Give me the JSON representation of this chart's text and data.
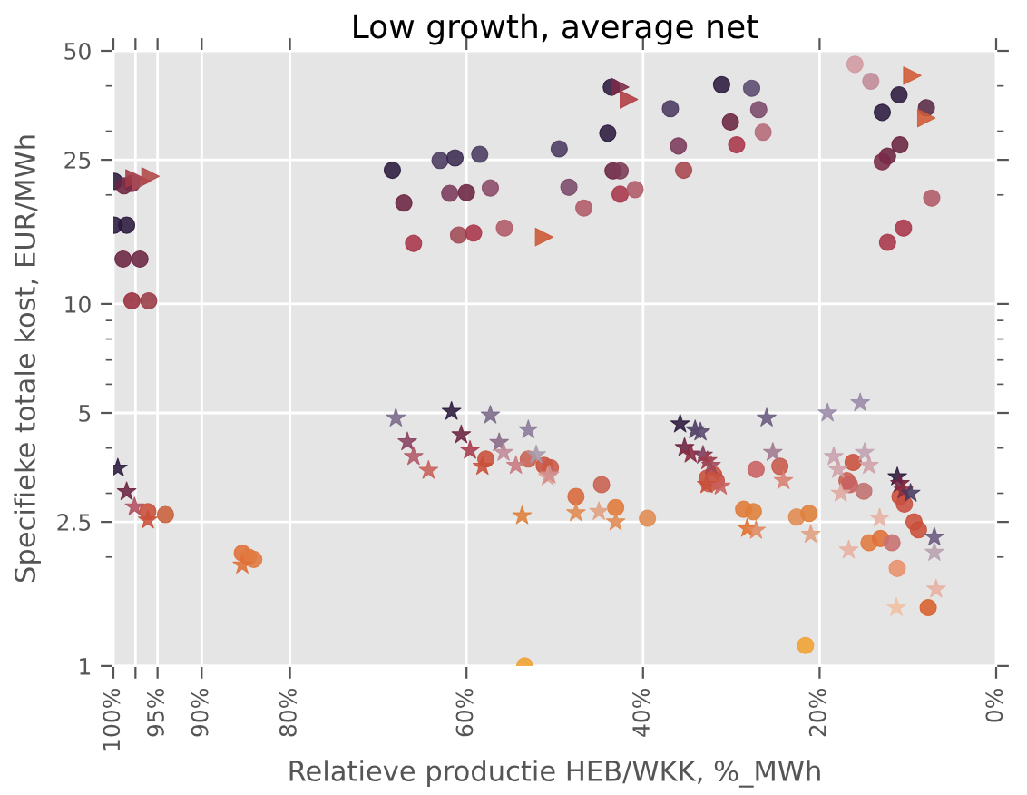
{
  "chart_data": {
    "type": "scatter",
    "title": "Low growth, average net",
    "xlabel": "Relatieve productie HEB/WKK, %_MWh",
    "ylabel": "Specifieke totale kost, EUR/MWh",
    "log": "y",
    "grid": true,
    "xlim": [
      100,
      0
    ],
    "xticks": [
      {
        "value": 100,
        "label": "100%"
      },
      {
        "value": 97.5,
        "label": null
      },
      {
        "value": 95,
        "label": "95%"
      },
      {
        "value": 90,
        "label": "90%"
      },
      {
        "value": 80,
        "label": "80%"
      },
      {
        "value": 60,
        "label": "60%"
      },
      {
        "value": 40,
        "label": "40%"
      },
      {
        "value": 20,
        "label": "20%"
      },
      {
        "value": 0,
        "label": "0%"
      }
    ],
    "ylim": [
      1,
      50
    ],
    "yticks": [
      1,
      2.5,
      5,
      10,
      25,
      50
    ],
    "series": [
      {
        "marker": "circle",
        "x": [
          99.9,
          98.8,
          97.9,
          99.9,
          98.5,
          98.9,
          97.0,
          97.9,
          96.0,
          68.4,
          67.1,
          66.0,
          63.0,
          61.3,
          58.5,
          61.9,
          60.0,
          57.3,
          60.9,
          59.2,
          55.7,
          49.5,
          48.4,
          46.7,
          44.0,
          43.6,
          43.4,
          42.6,
          42.6,
          40.9,
          36.9,
          36.0,
          35.4,
          31.1,
          27.7,
          30.1,
          26.9,
          29.4,
          26.4,
          16.0,
          14.2,
          11.0,
          12.9,
          7.9,
          10.9,
          12.3,
          12.9,
          7.3,
          10.5,
          12.3,
          96.1,
          94.1,
          85.4,
          84.7,
          84.1,
          57.8,
          53.0,
          51.2,
          50.5,
          47.6,
          44.7,
          43.1,
          39.5,
          32.7,
          32.0,
          31.7,
          32.5,
          27.2,
          24.5,
          28.6,
          27.5,
          22.6,
          21.2,
          21.6,
          16.2,
          16.9,
          16.6,
          15.0,
          14.4,
          13.1,
          11.8,
          11.2,
          10.9,
          10.4,
          9.3,
          8.8,
          7.7,
          53.4
        ],
        "values": [
          21.8,
          21.2,
          21.5,
          16.5,
          16.5,
          13.3,
          13.3,
          10.2,
          10.2,
          23.4,
          19.0,
          14.7,
          24.9,
          25.3,
          25.9,
          20.2,
          20.3,
          20.9,
          15.5,
          15.7,
          16.2,
          26.8,
          21.0,
          18.4,
          29.6,
          39.7,
          23.3,
          23.3,
          20.1,
          20.7,
          34.6,
          27.3,
          23.4,
          40.3,
          39.4,
          31.8,
          34.4,
          27.5,
          29.8,
          45.9,
          41.2,
          37.8,
          33.8,
          34.8,
          27.5,
          25.6,
          24.7,
          19.6,
          16.2,
          14.8,
          2.67,
          2.62,
          2.05,
          2.0,
          1.97,
          3.73,
          3.73,
          3.58,
          3.53,
          2.94,
          3.17,
          2.74,
          2.56,
          3.31,
          3.37,
          3.25,
          3.19,
          3.49,
          3.56,
          2.71,
          2.67,
          2.58,
          2.64,
          1.14,
          3.65,
          3.25,
          3.17,
          3.04,
          2.19,
          2.25,
          2.19,
          1.86,
          2.94,
          2.8,
          2.5,
          2.38,
          1.45,
          1.0
        ],
        "colors": [
          "#2b1a3d",
          "#6b2340",
          "#7a2a48",
          "#2b1a3d",
          "#2b1a3d",
          "#6b2340",
          "#6b2340",
          "#9a2e3e",
          "#9a3a45",
          "#2b1a3d",
          "#6b2340",
          "#a8364a",
          "#4a3a5e",
          "#3a2a50",
          "#4a3a5e",
          "#7a3a5a",
          "#6b2340",
          "#8a4a66",
          "#a04a55",
          "#a8364a",
          "#b05a68",
          "#4a3a5e",
          "#7a4a6a",
          "#b05a68",
          "#2b1a3d",
          "#2b1a3d",
          "#6b2340",
          "#7a3a55",
          "#a8364a",
          "#b05a68",
          "#4a3a5e",
          "#7a3a5a",
          "#a8464e",
          "#2b1a3d",
          "#5a4a6e",
          "#6b2340",
          "#7a4a6a",
          "#a8364a",
          "#b56a78",
          "#d09aa0",
          "#c08a98",
          "#2b1a3d",
          "#2b1a3d",
          "#5a2a45",
          "#6b2340",
          "#6b2340",
          "#7a2a48",
          "#b05a68",
          "#a8364a",
          "#a8364a",
          "#c8503a",
          "#c8603a",
          "#e07038",
          "#e07a40",
          "#e07a40",
          "#c8503a",
          "#c86050",
          "#c8503a",
          "#c85a48",
          "#d8683a",
          "#c86050",
          "#e07a38",
          "#e08a50",
          "#c8503a",
          "#c8503a",
          "#c85040",
          "#c86050",
          "#c86060",
          "#c85a4a",
          "#e07a38",
          "#e0803a",
          "#e08a50",
          "#e0803a",
          "#f0a030",
          "#c8503a",
          "#c86050",
          "#c86060",
          "#c07070",
          "#e07a40",
          "#e07038",
          "#c87070",
          "#e8906a",
          "#c8503a",
          "#c85040",
          "#c8503a",
          "#c8503a",
          "#d8602a",
          "#f0a030"
        ]
      },
      {
        "marker": "triangle",
        "x": [
          97.6,
          96.8,
          95.8,
          51.2,
          42.6,
          41.6,
          9.5,
          7.9
        ],
        "values": [
          22.2,
          21.8,
          22.5,
          15.3,
          39.7,
          36.7,
          42.7,
          32.6
        ],
        "colors": [
          "#a03a45",
          "#a84a55",
          "#b04848",
          "#cc5533",
          "#7a2a48",
          "#b03a40",
          "#d05a35",
          "#d05a35"
        ]
      },
      {
        "marker": "star",
        "x": [
          99.5,
          98.5,
          97.6,
          96.1,
          85.4,
          68.0,
          61.7,
          57.3,
          60.6,
          66.7,
          66.0,
          64.3,
          59.6,
          56.3,
          55.8,
          53.0,
          52.1,
          58.2,
          54.4,
          50.8,
          50.6,
          53.7,
          47.6,
          45.0,
          43.1,
          35.8,
          34.1,
          33.5,
          35.3,
          34.6,
          33.2,
          32.7,
          32.3,
          32.8,
          31.2,
          26.0,
          25.3,
          24.1,
          28.2,
          27.2,
          21.0,
          19.1,
          15.4,
          18.4,
          17.9,
          17.6,
          14.9,
          14.4,
          16.7,
          13.2,
          11.3,
          11.2,
          10.9,
          10.5,
          9.7,
          7.0,
          7.0,
          6.8
        ],
        "values": [
          3.52,
          3.03,
          2.75,
          2.53,
          1.9,
          4.84,
          5.05,
          4.93,
          4.35,
          4.16,
          3.79,
          3.47,
          3.94,
          4.14,
          3.89,
          4.49,
          3.83,
          3.56,
          3.58,
          3.33,
          3.37,
          2.6,
          2.65,
          2.67,
          2.5,
          4.66,
          4.49,
          4.43,
          4.01,
          3.85,
          3.82,
          3.69,
          3.58,
          3.17,
          3.14,
          4.84,
          3.89,
          3.25,
          2.4,
          2.37,
          2.31,
          5.0,
          5.33,
          3.79,
          3.49,
          3.0,
          3.89,
          3.58,
          2.09,
          2.56,
          1.45,
          3.33,
          3.19,
          3.06,
          3.0,
          2.27,
          2.06,
          1.63
        ],
        "colors": [
          "#2b1a3d",
          "#6b2340",
          "#b05060",
          "#c8503a",
          "#e07038",
          "#7a6a8a",
          "#2b1a3d",
          "#7a6a8a",
          "#6b2340",
          "#8a4060",
          "#b05a68",
          "#c8605a",
          "#a83a4a",
          "#8a6a88",
          "#c08a98",
          "#8a7a98",
          "#a89aaa",
          "#c8503a",
          "#c87a80",
          "#e0a090",
          "#d09090",
          "#e0803a",
          "#e08a50",
          "#e0a080",
          "#e08a50",
          "#2b1a3d",
          "#4a3a5e",
          "#5a4a6e",
          "#6b2340",
          "#8a2a40",
          "#7a3a5a",
          "#a03a4a",
          "#a04a5a",
          "#c8503a",
          "#c86060",
          "#6a5a7e",
          "#a07a90",
          "#d88070",
          "#e0702a",
          "#e08a60",
          "#e0a080",
          "#9a8aa8",
          "#9a8aa8",
          "#c8a0b0",
          "#d0a0a8",
          "#e0a8a0",
          "#c0a0b0",
          "#d0a0a8",
          "#e8b0a0",
          "#e8b0a0",
          "#f0c0a0",
          "#2b1a3d",
          "#6b2340",
          "#8a2a40",
          "#4a3a5e",
          "#6a5a7e",
          "#b8a0b0",
          "#e8b0a0"
        ]
      }
    ]
  }
}
